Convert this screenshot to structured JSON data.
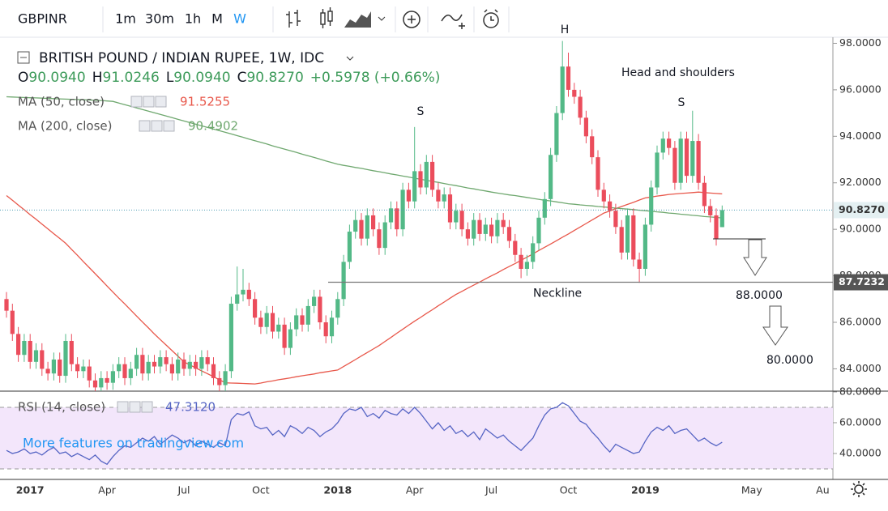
{
  "toolbar": {
    "symbol": "GBPINR",
    "intervals": [
      "1m",
      "30m",
      "1h",
      "M",
      "W"
    ],
    "active_interval": 4
  },
  "chart_data": {
    "type": "candlestick",
    "title": "BRITISH POUND / INDIAN RUPEE, 1W, IDC",
    "ohlc_legend": [
      {
        "key": "O",
        "value": "90.0940"
      },
      {
        "key": "H",
        "value": "91.0246"
      },
      {
        "key": "L",
        "value": "90.0940"
      },
      {
        "key": "C",
        "value": "90.8270"
      }
    ],
    "change": "+0.5978 (+0.66%)",
    "categories": [
      null,
      null,
      null,
      null,
      "2017",
      null,
      null,
      null,
      null,
      null,
      null,
      null,
      null,
      null,
      null,
      null,
      null,
      "Apr",
      null,
      null,
      null,
      null,
      null,
      null,
      null,
      null,
      null,
      null,
      null,
      null,
      "Jul",
      null,
      null,
      null,
      null,
      null,
      null,
      null,
      null,
      null,
      null,
      null,
      null,
      "Oct",
      null,
      null,
      null,
      null,
      null,
      null,
      null,
      null,
      null,
      null,
      null,
      null,
      "2018",
      null,
      null,
      null,
      null,
      null,
      null,
      null,
      null,
      null,
      null,
      null,
      null,
      "Apr",
      null,
      null,
      null,
      null,
      null,
      null,
      null,
      null,
      null,
      null,
      null,
      null,
      "Jul",
      null,
      null,
      null,
      null,
      null,
      null,
      null,
      null,
      null,
      null,
      null,
      null,
      "Oct",
      null,
      null,
      null,
      null,
      null,
      null,
      null,
      null,
      null,
      null,
      null,
      null,
      "2019",
      null,
      null,
      null,
      null,
      null,
      null,
      null,
      null,
      null,
      null,
      null,
      null,
      null,
      null,
      null,
      null,
      null,
      "May",
      null,
      null,
      null,
      null,
      null,
      null,
      null,
      null,
      null,
      null,
      null,
      "Au"
    ],
    "open": [
      87.0,
      86.5,
      85.5,
      84.6,
      85.2,
      84.3,
      84.8,
      84.0,
      83.8,
      84.4,
      83.7,
      85.2,
      84.2,
      83.9,
      84.1,
      83.5,
      83.2,
      83.6,
      83.4,
      83.9,
      84.2,
      83.6,
      84.0,
      84.6,
      83.8,
      84.3,
      84.1,
      84.5,
      84.2,
      83.8,
      84.4,
      84.0,
      84.3,
      84.0,
      84.5,
      84.2,
      83.6,
      83.3,
      83.9,
      86.8,
      87.2,
      87.4,
      87.0,
      86.2,
      85.8,
      86.4,
      85.6,
      85.9,
      84.9,
      85.7,
      86.3,
      85.9,
      86.7,
      87.1,
      86.0,
      85.4,
      86.2,
      87.0,
      88.6,
      89.9,
      90.4,
      89.6,
      90.6,
      90.0,
      89.2,
      90.3,
      90.9,
      90.0,
      91.7,
      91.2,
      92.5,
      91.8,
      92.9,
      91.7,
      91.2,
      91.5,
      90.3,
      90.8,
      90.0,
      89.6,
      90.4,
      89.8,
      90.2,
      89.7,
      90.4,
      90.1,
      89.5,
      88.9,
      88.3,
      88.6,
      89.4,
      90.5,
      91.3,
      93.2,
      95.0,
      97.0,
      96.0,
      95.7,
      94.8,
      94.0,
      93.1,
      91.7,
      91.2,
      90.8,
      90.1,
      89.0,
      90.6,
      88.7,
      88.3,
      90.2,
      91.8,
      93.3,
      93.9,
      93.5,
      92.0,
      93.9,
      92.3,
      93.8,
      92.0,
      91.0,
      90.6,
      90.094,
      null,
      null,
      null,
      null,
      null,
      null,
      null,
      null,
      null,
      null,
      null,
      null,
      null,
      null,
      null,
      null,
      null
    ],
    "high": [
      87.3,
      86.8,
      85.8,
      85.5,
      85.5,
      85.1,
      85.1,
      84.3,
      84.7,
      84.7,
      85.5,
      85.5,
      84.5,
      84.4,
      84.4,
      83.8,
      83.9,
      83.9,
      84.2,
      84.5,
      84.5,
      84.3,
      84.9,
      84.9,
      84.6,
      84.6,
      84.8,
      84.8,
      84.5,
      84.7,
      84.7,
      84.6,
      84.6,
      84.8,
      84.8,
      84.5,
      83.9,
      84.2,
      87.1,
      88.4,
      88.3,
      87.7,
      87.3,
      86.5,
      86.7,
      86.7,
      86.2,
      86.2,
      86.0,
      86.6,
      86.6,
      87.0,
      87.4,
      87.4,
      86.3,
      86.5,
      87.3,
      88.9,
      90.2,
      90.8,
      90.7,
      90.9,
      90.9,
      90.3,
      90.6,
      91.2,
      91.2,
      92.0,
      92.0,
      94.4,
      92.8,
      93.2,
      93.2,
      92.0,
      91.8,
      91.8,
      91.1,
      91.1,
      90.3,
      90.7,
      90.7,
      90.5,
      90.5,
      90.7,
      90.7,
      90.4,
      89.8,
      89.2,
      88.9,
      89.7,
      90.8,
      91.6,
      93.5,
      95.3,
      98.1,
      97.6,
      96.3,
      96.0,
      95.1,
      94.3,
      93.4,
      92.0,
      91.5,
      91.1,
      90.4,
      90.9,
      90.9,
      89.0,
      90.5,
      92.1,
      93.6,
      94.2,
      94.2,
      93.8,
      94.2,
      94.2,
      95.1,
      94.1,
      92.3,
      91.3,
      90.9,
      91.0246,
      null,
      null,
      null,
      null,
      null,
      null,
      null,
      null,
      null,
      null,
      null,
      null,
      null,
      null,
      null,
      null,
      null
    ],
    "low": [
      86.2,
      85.2,
      84.3,
      84.3,
      84.0,
      84.0,
      83.7,
      83.5,
      83.5,
      83.4,
      83.4,
      83.9,
      83.6,
      83.6,
      83.2,
      82.9,
      82.9,
      83.1,
      83.1,
      83.6,
      83.3,
      83.3,
      83.7,
      83.5,
      83.5,
      83.8,
      83.8,
      83.9,
      83.5,
      83.5,
      83.7,
      83.7,
      83.7,
      83.7,
      83.9,
      83.3,
      83.0,
      83.0,
      83.6,
      86.5,
      86.9,
      86.7,
      85.9,
      85.5,
      85.5,
      85.3,
      85.3,
      84.6,
      84.6,
      85.4,
      85.6,
      85.6,
      86.4,
      85.7,
      85.1,
      85.1,
      85.9,
      86.7,
      88.3,
      89.6,
      89.3,
      89.3,
      89.7,
      88.9,
      88.9,
      90.0,
      89.7,
      89.7,
      90.9,
      90.9,
      91.5,
      91.5,
      91.4,
      90.9,
      90.9,
      90.0,
      90.0,
      89.7,
      89.3,
      89.3,
      89.5,
      89.5,
      89.4,
      89.4,
      89.8,
      89.2,
      88.6,
      87.9,
      88.0,
      88.3,
      89.1,
      90.2,
      91.0,
      92.9,
      94.7,
      95.7,
      95.4,
      94.5,
      93.7,
      92.8,
      91.4,
      90.9,
      90.5,
      89.8,
      88.7,
      88.7,
      88.4,
      87.7,
      88.0,
      89.9,
      91.5,
      93.0,
      93.2,
      91.7,
      91.7,
      92.0,
      92.0,
      91.7,
      90.7,
      90.3,
      89.3,
      90.094,
      null,
      null,
      null,
      null,
      null,
      null,
      null,
      null,
      null,
      null,
      null,
      null,
      null,
      null,
      null,
      null,
      null
    ],
    "close": [
      86.5,
      85.5,
      84.6,
      85.2,
      84.3,
      84.8,
      84.0,
      83.8,
      84.4,
      83.7,
      85.2,
      84.2,
      83.9,
      84.1,
      83.5,
      83.2,
      83.6,
      83.4,
      83.9,
      84.2,
      83.6,
      84.0,
      84.6,
      83.8,
      84.3,
      84.1,
      84.5,
      84.2,
      83.8,
      84.4,
      84.0,
      84.3,
      84.0,
      84.5,
      84.2,
      83.6,
      83.3,
      83.9,
      86.8,
      87.2,
      87.4,
      87.0,
      86.2,
      85.8,
      86.4,
      85.6,
      85.9,
      84.9,
      85.7,
      86.3,
      85.9,
      86.7,
      87.1,
      86.0,
      85.4,
      86.2,
      87.0,
      88.6,
      89.9,
      90.4,
      89.6,
      90.6,
      90.0,
      89.2,
      90.3,
      90.9,
      90.0,
      91.7,
      91.2,
      92.5,
      91.8,
      92.9,
      91.7,
      91.2,
      91.5,
      90.3,
      90.8,
      90.0,
      89.6,
      90.4,
      89.8,
      90.2,
      89.7,
      90.4,
      90.1,
      89.5,
      88.9,
      88.3,
      88.6,
      89.4,
      90.5,
      91.3,
      93.2,
      95.0,
      97.0,
      96.0,
      95.7,
      94.8,
      94.0,
      93.1,
      91.7,
      91.2,
      90.8,
      90.1,
      89.0,
      90.6,
      88.7,
      88.3,
      90.2,
      91.8,
      93.3,
      93.9,
      93.5,
      92.0,
      93.9,
      92.3,
      93.8,
      92.0,
      91.0,
      90.6,
      89.6,
      90.827,
      null,
      null,
      null,
      null,
      null,
      null,
      null,
      null,
      null,
      null,
      null,
      null,
      null,
      null,
      null,
      null,
      null
    ],
    "up_color": "#53b987",
    "down_color": "#eb4d5c",
    "series": [
      {
        "name": "MA (50, close)",
        "color": "#e8574a",
        "values": [
          91.45,
          91.25,
          91.04,
          90.84,
          90.63,
          90.43,
          90.22,
          90.02,
          89.81,
          89.61,
          89.4,
          89.14,
          88.88,
          88.61,
          88.35,
          88.09,
          87.83,
          87.56,
          87.3,
          87.04,
          86.79,
          86.53,
          86.27,
          86.01,
          85.76,
          85.5,
          85.26,
          85.02,
          84.78,
          84.54,
          84.3,
          84.17,
          84.04,
          83.91,
          83.79,
          83.66,
          83.53,
          83.4,
          83.39,
          83.38,
          83.37,
          83.36,
          83.35,
          83.39,
          83.44,
          83.48,
          83.53,
          83.57,
          83.61,
          83.66,
          83.7,
          83.74,
          83.78,
          83.83,
          83.87,
          83.91,
          83.95,
          84.1,
          84.25,
          84.4,
          84.55,
          84.7,
          84.85,
          85.0,
          85.18,
          85.35,
          85.53,
          85.7,
          85.88,
          86.05,
          86.21,
          86.38,
          86.54,
          86.71,
          86.87,
          87.04,
          87.2,
          87.33,
          87.47,
          87.6,
          87.73,
          87.87,
          88.0,
          88.13,
          88.27,
          88.4,
          88.53,
          88.67,
          88.8,
          88.94,
          89.09,
          89.23,
          89.37,
          89.51,
          89.66,
          89.8,
          89.95,
          90.1,
          90.25,
          90.4,
          90.55,
          90.7,
          90.79,
          90.89,
          90.98,
          91.07,
          91.16,
          91.26,
          91.35,
          91.39,
          91.43,
          91.46,
          91.5,
          91.52,
          91.54,
          91.56,
          91.58,
          91.6,
          91.58,
          91.56,
          91.54,
          91.5255,
          null,
          null,
          null,
          null,
          null,
          null,
          null,
          null,
          null,
          null,
          null,
          null,
          null,
          null,
          null,
          null,
          null
        ]
      },
      {
        "name": "MA (200, close)",
        "color": "#6fa86f",
        "values": [
          95.7,
          95.69,
          95.68,
          95.67,
          95.66,
          95.65,
          95.64,
          95.63,
          95.62,
          95.61,
          95.6,
          95.59,
          95.58,
          95.57,
          95.56,
          95.55,
          95.54,
          95.52,
          95.5,
          95.43,
          95.36,
          95.29,
          95.22,
          95.15,
          95.08,
          95.01,
          94.94,
          94.87,
          94.8,
          94.73,
          94.66,
          94.59,
          94.52,
          94.45,
          94.38,
          94.31,
          94.24,
          94.17,
          94.1,
          94.03,
          93.96,
          93.88,
          93.81,
          93.74,
          93.67,
          93.59,
          93.52,
          93.45,
          93.38,
          93.31,
          93.23,
          93.16,
          93.09,
          93.02,
          92.94,
          92.87,
          92.8,
          92.75,
          92.71,
          92.66,
          92.62,
          92.57,
          92.52,
          92.48,
          92.43,
          92.38,
          92.34,
          92.29,
          92.25,
          92.2,
          92.15,
          92.11,
          92.06,
          92.02,
          91.97,
          91.92,
          91.88,
          91.83,
          91.78,
          91.74,
          91.69,
          91.65,
          91.6,
          91.56,
          91.52,
          91.48,
          91.45,
          91.41,
          91.37,
          91.33,
          91.29,
          91.25,
          91.22,
          91.18,
          91.14,
          91.1,
          91.08,
          91.05,
          91.03,
          91.01,
          90.98,
          90.96,
          90.94,
          90.91,
          90.89,
          90.87,
          90.85,
          90.82,
          90.8,
          90.78,
          90.75,
          90.73,
          90.7,
          90.68,
          90.65,
          90.63,
          90.6,
          90.58,
          90.55,
          90.53,
          90.51,
          90.4902,
          null,
          null,
          null,
          null,
          null,
          null,
          null,
          null,
          null,
          null,
          null,
          null,
          null,
          null,
          null,
          null,
          null
        ]
      }
    ],
    "ylim": [
      83.04,
      98.26
    ],
    "yticks": [
      {
        "value": 84,
        "label": "84.0000"
      },
      {
        "value": 86,
        "label": "86.0000"
      },
      {
        "value": 88,
        "label": "88.0000"
      },
      {
        "value": 90,
        "label": "90.0000"
      },
      {
        "value": 92,
        "label": "92.0000"
      },
      {
        "value": 94,
        "label": "94.0000"
      },
      {
        "value": 96,
        "label": "96.0000"
      },
      {
        "value": 98,
        "label": "98.0000"
      }
    ],
    "last_price_label": "90.8270",
    "neckline": {
      "value": 87.7232,
      "text": "Neckline"
    },
    "annotations": [
      "H",
      "S",
      "S",
      "Head and shoulders",
      "88.0000",
      "80.0000"
    ],
    "watermark": "More features on tradingview.com",
    "rsi": {
      "type": "line",
      "name": "RSI (14, close)",
      "color": "#5665c4",
      "values": [
        42,
        40,
        41,
        43,
        40,
        41,
        39,
        42,
        44,
        40,
        41,
        38,
        40,
        38,
        36,
        39,
        35,
        33,
        38,
        42,
        45,
        44,
        47,
        50,
        48,
        51,
        46,
        49,
        52,
        50,
        47,
        49,
        45,
        48,
        46,
        44,
        47,
        45,
        62,
        66,
        65,
        67,
        58,
        56,
        57,
        52,
        55,
        51,
        58,
        56,
        53,
        57,
        55,
        51,
        54,
        56,
        60,
        66,
        69,
        68,
        70,
        64,
        66,
        63,
        68,
        66,
        65,
        69,
        66,
        70,
        66,
        61,
        56,
        60,
        55,
        58,
        53,
        55,
        51,
        54,
        49,
        56,
        53,
        50,
        52,
        48,
        45,
        42,
        46,
        50,
        58,
        65,
        69,
        70,
        73,
        71,
        66,
        61,
        59,
        54,
        50,
        45,
        41,
        46,
        44,
        42,
        40,
        41,
        48,
        54,
        57,
        55,
        58,
        53,
        55,
        56,
        52,
        48,
        50,
        47,
        45,
        47.312,
        null,
        null,
        null,
        null,
        null,
        null,
        null,
        null,
        null,
        null,
        null,
        null,
        null,
        null,
        null,
        null,
        null
      ],
      "last_value_label": "47.3120",
      "ylim": [
        24.2,
        80.5
      ],
      "yticks": [
        {
          "value": 40,
          "label": "40.0000"
        },
        {
          "value": 60,
          "label": "60.0000"
        },
        {
          "value": 80,
          "label": "80.0000"
        }
      ],
      "band": [
        30,
        70
      ],
      "band_color": "#f3e6fb"
    }
  }
}
